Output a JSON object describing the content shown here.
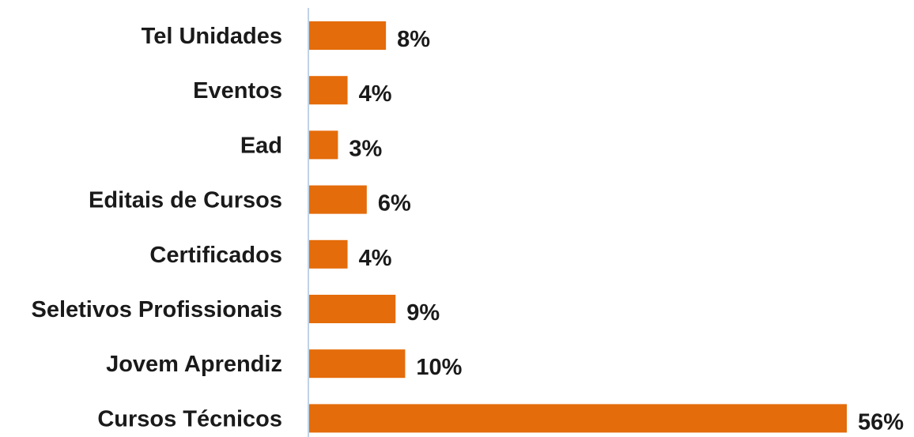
{
  "chart_data": {
    "type": "bar",
    "orientation": "horizontal",
    "categories": [
      "Tel Unidades",
      "Eventos",
      "Ead",
      "Editais de Cursos",
      "Certificados",
      "Seletivos Profissionais",
      "Jovem Aprendiz",
      "Cursos Técnicos"
    ],
    "values": [
      8,
      4,
      3,
      6,
      4,
      9,
      10,
      56
    ],
    "value_labels": [
      "8%",
      "4%",
      "3%",
      "6%",
      "4%",
      "9%",
      "10%",
      "56%"
    ],
    "unit": "%",
    "xlim": [
      0,
      56
    ],
    "grid": false,
    "legend": "none",
    "bar_color": "#E46C0A",
    "axis_color": "#BFD3E8",
    "text_color": "#1a1a1a"
  }
}
